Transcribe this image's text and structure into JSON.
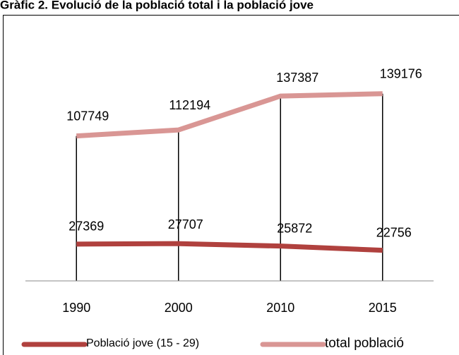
{
  "chart_data": {
    "type": "line",
    "title": "Gràfic 2. Evolució de la població total i la població jove",
    "categories": [
      "1990",
      "2000",
      "2010",
      "2015"
    ],
    "series": [
      {
        "name": "Població jove (15 - 29)",
        "color": "#b0413e",
        "values": [
          27369,
          27707,
          25872,
          22756
        ]
      },
      {
        "name": "total població",
        "color": "#d99694",
        "values": [
          107749,
          112194,
          137387,
          139176
        ]
      }
    ],
    "ylim": [
      0,
      160000
    ],
    "drop_lines": true
  }
}
